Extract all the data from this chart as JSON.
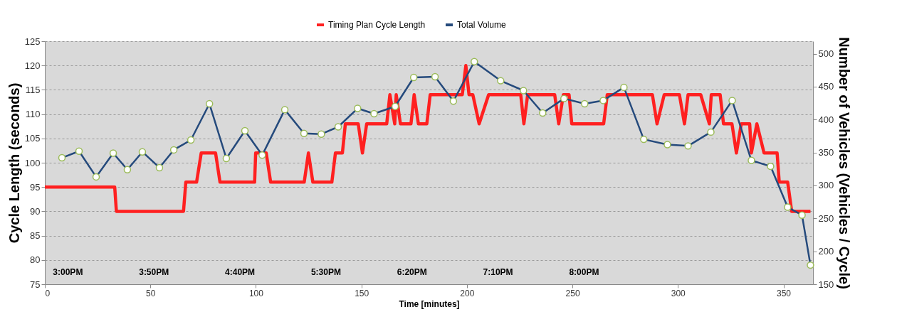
{
  "chart_data": {
    "type": "line",
    "xlabel": "Time [minutes]",
    "ylabel": "Cycle Length (seconds)",
    "y2label": "Number of Vehicles (Vehicles / Cycle)",
    "xlim": [
      0,
      364
    ],
    "xticks": [
      0,
      50,
      100,
      150,
      200,
      250,
      300,
      350
    ],
    "ylim": [
      75,
      125
    ],
    "yticks": [
      75,
      80,
      85,
      90,
      95,
      100,
      105,
      110,
      115,
      120,
      125
    ],
    "y2lim": [
      150,
      519
    ],
    "y2ticks": [
      150,
      200,
      250,
      300,
      350,
      400,
      450,
      500
    ],
    "grid": "y",
    "legend": "top",
    "series": [
      {
        "name": "Timing Plan Cycle Length",
        "color": "#ff2020",
        "marker": "none",
        "x": [
          0,
          33.1,
          33.9,
          65.7,
          66.8,
          71.9,
          74.1,
          80.9,
          83,
          99.4,
          99.9,
          104.9,
          107,
          122.9,
          124.9,
          127,
          136,
          137.7,
          141,
          142.4,
          148.5,
          150.5,
          152.5,
          162,
          163.5,
          165.8,
          166.5,
          168.5,
          173.5,
          175,
          177,
          181,
          182.6,
          197.8,
          199.5,
          201,
          202.8,
          205.8,
          210.3,
          225.5,
          227,
          228.8,
          241.6,
          243.5,
          245.7,
          248.4,
          249.7,
          264.8,
          266.5,
          287.9,
          290.1,
          293.5,
          300.7,
          303.1,
          304.8,
          310.8,
          314.9,
          315.8,
          320,
          321.6,
          325.6,
          327.7,
          330,
          334,
          334.8,
          337.4,
          340.8,
          347,
          348,
          352,
          353.9,
          362.8
        ],
        "values": [
          95,
          95,
          90,
          90,
          96,
          96,
          102,
          102,
          96,
          96,
          102,
          102,
          96,
          96,
          102,
          96,
          96,
          102,
          102,
          108,
          108,
          102,
          108,
          108,
          114,
          108,
          114,
          108,
          108,
          114,
          108,
          108,
          114,
          114,
          120,
          114,
          114,
          108,
          114,
          114,
          108,
          114,
          114,
          108,
          114,
          114,
          108,
          108,
          114,
          114,
          108,
          114,
          114,
          108,
          114,
          114,
          108,
          114,
          114,
          108,
          108,
          102,
          108,
          108,
          102,
          108,
          102,
          102,
          96,
          96,
          90,
          90
        ]
      },
      {
        "name": "Total Volume",
        "color": "#254a7c",
        "axis": "y2",
        "marker": "circle",
        "x": [
          8.1,
          16.2,
          24.3,
          32.4,
          39.1,
          46.2,
          54.3,
          61.1,
          69.2,
          78,
          86,
          94.8,
          103,
          113.7,
          122.8,
          131,
          139,
          148.2,
          156,
          166,
          174.8,
          184.9,
          193.6,
          203.5,
          216,
          226.8,
          235.9,
          246,
          255.8,
          264.6,
          274.4,
          283.8,
          295,
          304.8,
          315.6,
          325.7,
          334.8,
          343.9,
          352,
          358.8,
          362.8
        ],
        "values": [
          342,
          352,
          313,
          349,
          324,
          351,
          327,
          354,
          369,
          424,
          341,
          383,
          346,
          415,
          379,
          378,
          389,
          417,
          409,
          420,
          464,
          465,
          428,
          488,
          459,
          444,
          410,
          432,
          424,
          429,
          449,
          370,
          362,
          360,
          381,
          429,
          338,
          329,
          267,
          255,
          179
        ]
      }
    ],
    "annotations": [
      "3:00PM",
      "3:50PM",
      "4:40PM",
      "5:30PM",
      "6:20PM",
      "7:10PM",
      "8:00PM"
    ]
  }
}
